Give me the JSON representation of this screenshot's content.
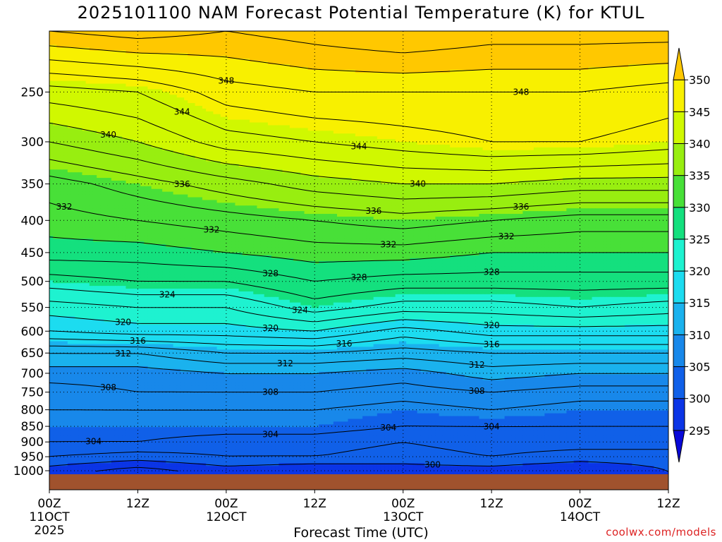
{
  "chart_data": {
    "type": "contour-heatmap",
    "title": "2025101100 NAM Forecast Potential Temperature (K) for KTUL",
    "xlabel": "Forecast Time (UTC)",
    "ylabel": "",
    "credit": "coolwx.com/models",
    "x_ticks": [
      {
        "h": 0,
        "label": "00Z",
        "sub": "11OCT",
        "sub2": "2025"
      },
      {
        "h": 12,
        "label": "12Z"
      },
      {
        "h": 24,
        "label": "00Z",
        "sub": "12OCT"
      },
      {
        "h": 36,
        "label": "12Z"
      },
      {
        "h": 48,
        "label": "00Z",
        "sub": "13OCT"
      },
      {
        "h": 60,
        "label": "12Z"
      },
      {
        "h": 72,
        "label": "00Z",
        "sub": "14OCT"
      },
      {
        "h": 84,
        "label": "12Z"
      }
    ],
    "xlim": [
      0,
      84
    ],
    "y_ticks": [
      "250",
      "300",
      "350",
      "400",
      "450",
      "500",
      "550",
      "600",
      "650",
      "700",
      "750",
      "800",
      "850",
      "900",
      "950",
      "1000"
    ],
    "y_values": [
      250,
      300,
      350,
      400,
      450,
      500,
      550,
      600,
      650,
      700,
      750,
      800,
      850,
      900,
      950,
      1000
    ],
    "ylim_hpa": [
      200,
      1013
    ],
    "colorbar": {
      "labels": [
        "295",
        "300",
        "305",
        "310",
        "315",
        "320",
        "325",
        "330",
        "335",
        "340",
        "345",
        "350"
      ],
      "levels": [
        295,
        300,
        305,
        310,
        315,
        320,
        325,
        330,
        335,
        340,
        345,
        350
      ],
      "colors": [
        "#0808d8",
        "#0b35e6",
        "#1060e8",
        "#1888ea",
        "#1ab2ee",
        "#1cdcf0",
        "#1ef2d0",
        "#14e07e",
        "#48e038",
        "#98ee10",
        "#d0f800",
        "#f8f000",
        "#ffc800"
      ]
    },
    "time_hours": [
      0,
      12,
      24,
      36,
      48,
      60,
      72,
      84
    ],
    "pressure_hpa": [
      200,
      250,
      300,
      350,
      400,
      450,
      500,
      550,
      600,
      650,
      700,
      750,
      800,
      850,
      900,
      950,
      1000
    ],
    "theta_K": [
      [
        352,
        353,
        352,
        353,
        354,
        353,
        353,
        353
      ],
      [
        343,
        344,
        347,
        348,
        348,
        348,
        348,
        347
      ],
      [
        338,
        340,
        343,
        344,
        345,
        346,
        346,
        345
      ],
      [
        333,
        335,
        337,
        339,
        340,
        340,
        339,
        339
      ],
      [
        331,
        332,
        333,
        334,
        335,
        334,
        333,
        333
      ],
      [
        329,
        329,
        330,
        331,
        331,
        330,
        330,
        330
      ],
      [
        325,
        326,
        326,
        328,
        327,
        327,
        327,
        327
      ],
      [
        321,
        322,
        322,
        325,
        323,
        323,
        324,
        323
      ],
      [
        318,
        319,
        319,
        320,
        317,
        319,
        319,
        319
      ],
      [
        312,
        312,
        314,
        314,
        313,
        314,
        314,
        314
      ],
      [
        309,
        309,
        310,
        310,
        309,
        311,
        310,
        310
      ],
      [
        307,
        308,
        308,
        308,
        307,
        308,
        307,
        307
      ],
      [
        306,
        306,
        306,
        306,
        305,
        306,
        305,
        305
      ],
      [
        305,
        305,
        305,
        305,
        304,
        304,
        304,
        304
      ],
      [
        304,
        304,
        303,
        303,
        302,
        303,
        303,
        303
      ],
      [
        302,
        301,
        302,
        302,
        301,
        302,
        301,
        301
      ],
      [
        299,
        297,
        299,
        298,
        299,
        299,
        298,
        300
      ]
    ],
    "contour_labels": [
      "348",
      "348",
      "340",
      "344",
      "344",
      "340",
      "336",
      "336",
      "336",
      "332",
      "332",
      "332",
      "332",
      "328",
      "328",
      "328",
      "324",
      "324",
      "320",
      "320",
      "320",
      "316",
      "316",
      "316",
      "312",
      "312",
      "312",
      "308",
      "308",
      "308",
      "304",
      "304",
      "304",
      "304",
      "300"
    ]
  }
}
